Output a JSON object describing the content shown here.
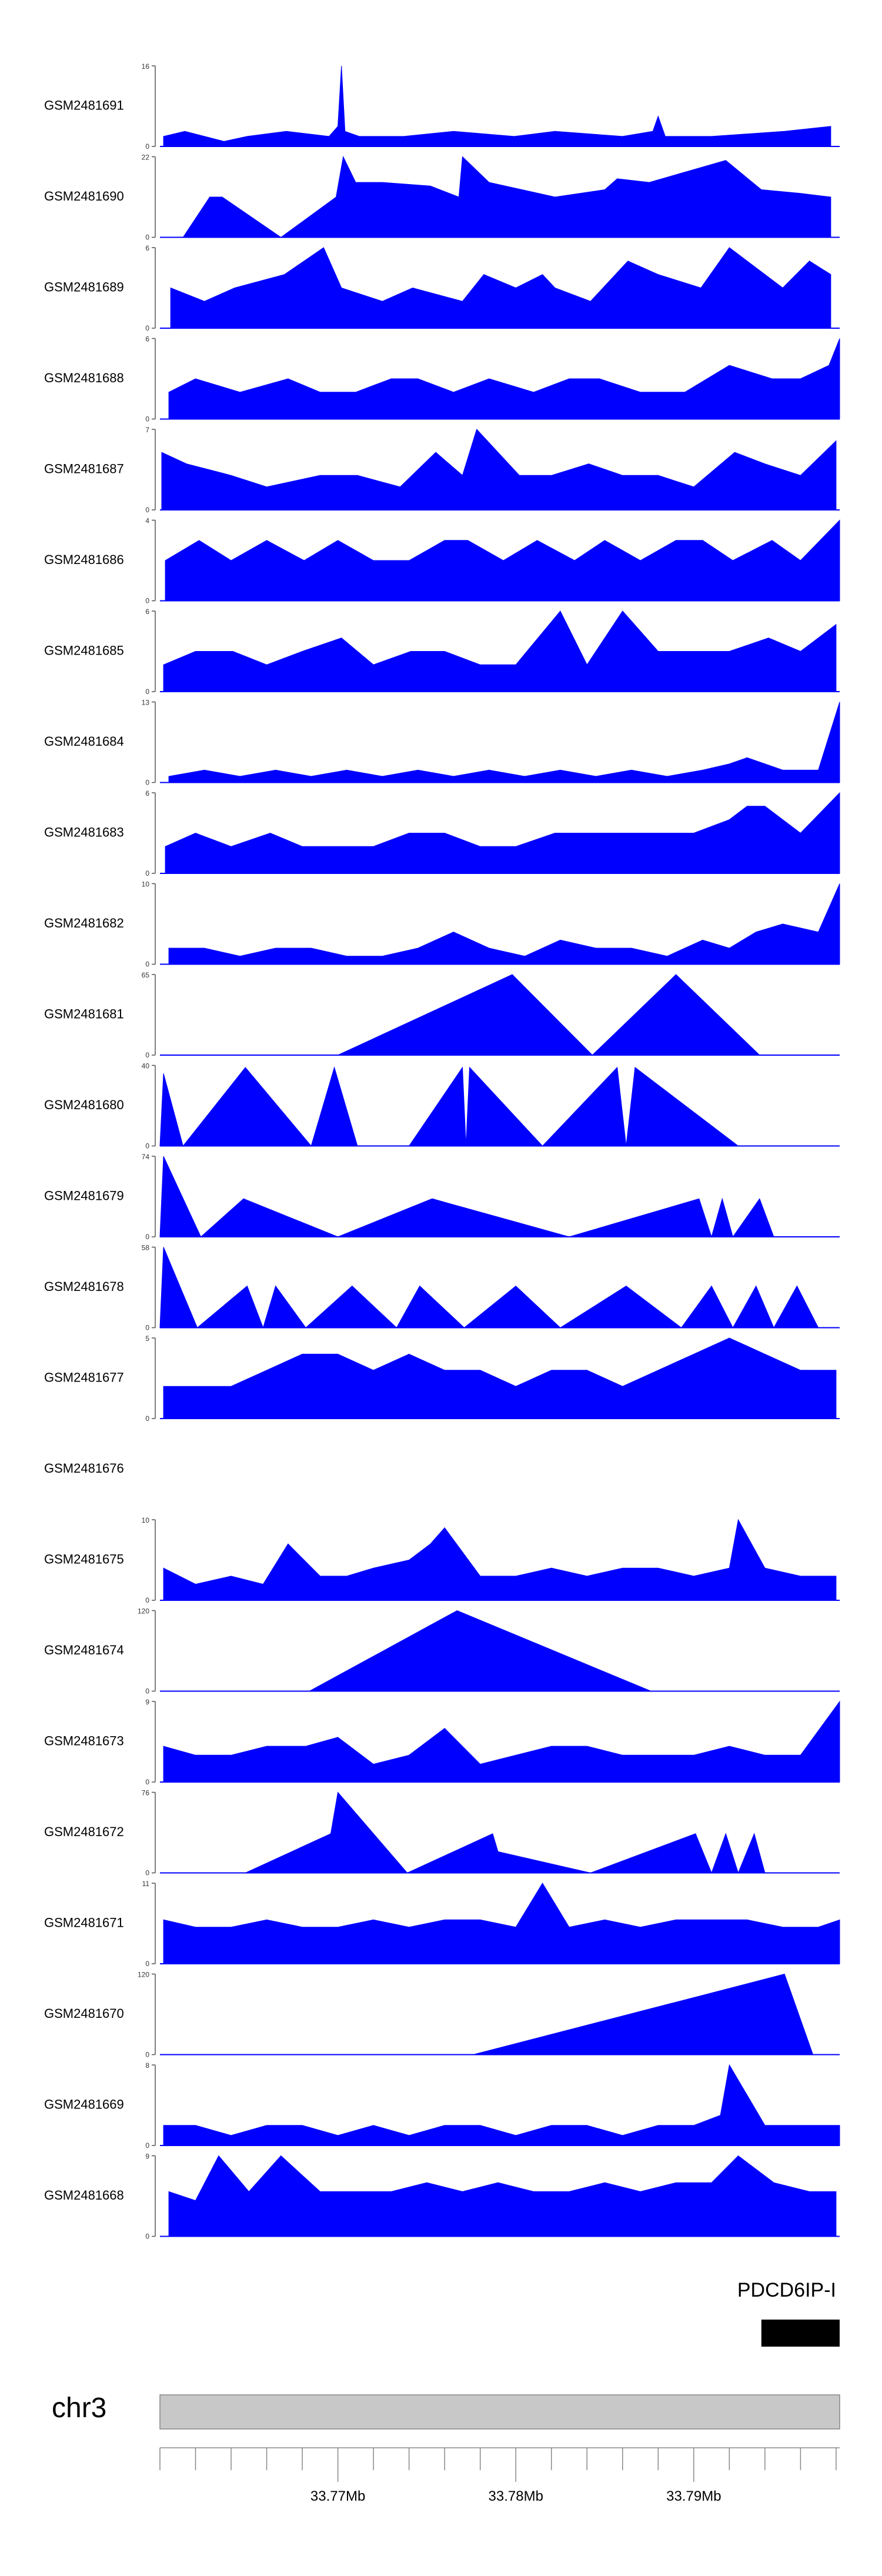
{
  "chart_data": {
    "type": "area",
    "description_title": "",
    "fill_color": "#0000ff",
    "tracks": [
      {
        "sample": "GSM2481691",
        "ymax": 16,
        "ymin": 0,
        "x": [
          33.7602,
          33.7614,
          33.7636,
          33.7649,
          33.7671,
          33.7695,
          33.77,
          33.7702,
          33.7704,
          33.7712,
          33.7737,
          33.7765,
          33.7799,
          33.7822,
          33.786,
          33.7877,
          33.788,
          33.7884,
          33.791,
          33.7951,
          33.7977
        ],
        "y": [
          2,
          3,
          1,
          2,
          3,
          2,
          4,
          16,
          3,
          2,
          2,
          3,
          2,
          3,
          2,
          3,
          6,
          2,
          2,
          3,
          4
        ]
      },
      {
        "sample": "GSM2481690",
        "ymax": 22,
        "ymin": 0,
        "x": [
          33.7613,
          33.7628,
          33.7635,
          33.7668,
          33.7699,
          33.7703,
          33.771,
          33.7725,
          33.7752,
          33.7768,
          33.777,
          33.7785,
          33.7822,
          33.785,
          33.7857,
          33.7875,
          33.7918,
          33.7938,
          33.796,
          33.7977
        ],
        "y": [
          0,
          11,
          11,
          0,
          11,
          22,
          15,
          15,
          14,
          11,
          22,
          15,
          11,
          13,
          16,
          15,
          21,
          13,
          12,
          11
        ]
      },
      {
        "sample": "GSM2481689",
        "ymax": 6,
        "ymin": 0,
        "x": [
          33.7606,
          33.7625,
          33.7642,
          33.767,
          33.7692,
          33.7702,
          33.7725,
          33.7742,
          33.777,
          33.7782,
          33.78,
          33.7815,
          33.7822,
          33.7842,
          33.7863,
          33.788,
          33.7904,
          33.792,
          33.795,
          33.7965,
          33.7977
        ],
        "y": [
          3,
          2,
          3,
          4,
          6,
          3,
          2,
          3,
          2,
          4,
          3,
          4,
          3,
          2,
          5,
          4,
          3,
          6,
          3,
          5,
          4
        ]
      },
      {
        "sample": "GSM2481688",
        "ymax": 6,
        "ymin": 0,
        "x": [
          33.7605,
          33.762,
          33.7645,
          33.7672,
          33.769,
          33.771,
          33.773,
          33.7745,
          33.7765,
          33.7785,
          33.781,
          33.783,
          33.7847,
          33.787,
          33.7895,
          33.792,
          33.7944,
          33.796,
          33.7976,
          33.7982
        ],
        "y": [
          2,
          3,
          2,
          3,
          2,
          2,
          3,
          3,
          2,
          3,
          2,
          3,
          3,
          2,
          2,
          4,
          3,
          3,
          4,
          6
        ]
      },
      {
        "sample": "GSM2481687",
        "ymax": 7,
        "ymin": 0,
        "x": [
          33.7601,
          33.7615,
          33.764,
          33.766,
          33.769,
          33.7711,
          33.7735,
          33.7755,
          33.777,
          33.7778,
          33.7802,
          33.782,
          33.7841,
          33.786,
          33.788,
          33.79,
          33.7923,
          33.794,
          33.796,
          33.798
        ],
        "y": [
          5,
          4,
          3,
          2,
          3,
          3,
          2,
          5,
          3,
          7,
          3,
          3,
          4,
          3,
          3,
          2,
          5,
          4,
          3,
          6
        ]
      },
      {
        "sample": "GSM2481686",
        "ymax": 4,
        "ymin": 0,
        "x": [
          33.7603,
          33.7622,
          33.764,
          33.766,
          33.7681,
          33.77,
          33.772,
          33.774,
          33.776,
          33.7773,
          33.7793,
          33.7812,
          33.7833,
          33.785,
          33.787,
          33.789,
          33.7905,
          33.7922,
          33.7944,
          33.796,
          33.7982
        ],
        "y": [
          2,
          3,
          2,
          3,
          2,
          3,
          2,
          2,
          3,
          3,
          2,
          3,
          2,
          3,
          2,
          3,
          3,
          2,
          3,
          2,
          4
        ]
      },
      {
        "sample": "GSM2481685",
        "ymax": 6,
        "ymin": 0,
        "x": [
          33.7602,
          33.762,
          33.7641,
          33.766,
          33.768,
          33.7702,
          33.772,
          33.7741,
          33.776,
          33.778,
          33.78,
          33.7825,
          33.784,
          33.786,
          33.788,
          33.7903,
          33.792,
          33.7942,
          33.796,
          33.798
        ],
        "y": [
          2,
          3,
          3,
          2,
          3,
          4,
          2,
          3,
          3,
          2,
          2,
          6,
          2,
          6,
          3,
          3,
          3,
          4,
          3,
          5
        ]
      },
      {
        "sample": "GSM2481684",
        "ymax": 13,
        "ymin": 0,
        "x": [
          33.7605,
          33.7625,
          33.7645,
          33.7665,
          33.7685,
          33.7705,
          33.7725,
          33.7745,
          33.7765,
          33.7785,
          33.7805,
          33.7825,
          33.7845,
          33.7865,
          33.7885,
          33.7905,
          33.792,
          33.793,
          33.795,
          33.797,
          33.7982
        ],
        "y": [
          1,
          2,
          1,
          2,
          1,
          2,
          1,
          2,
          1,
          2,
          1,
          2,
          1,
          2,
          1,
          2,
          3,
          4,
          2,
          2,
          13
        ]
      },
      {
        "sample": "GSM2481683",
        "ymax": 6,
        "ymin": 0,
        "x": [
          33.7603,
          33.762,
          33.764,
          33.7662,
          33.768,
          33.77,
          33.772,
          33.774,
          33.776,
          33.778,
          33.78,
          33.7822,
          33.784,
          33.786,
          33.788,
          33.79,
          33.792,
          33.793,
          33.794,
          33.796,
          33.7982
        ],
        "y": [
          2,
          3,
          2,
          3,
          2,
          2,
          2,
          3,
          3,
          2,
          2,
          3,
          3,
          3,
          3,
          3,
          4,
          5,
          5,
          3,
          6
        ]
      },
      {
        "sample": "GSM2481682",
        "ymax": 10,
        "ymin": 0,
        "x": [
          33.7605,
          33.7625,
          33.7645,
          33.7665,
          33.7685,
          33.7705,
          33.7725,
          33.7745,
          33.7765,
          33.7785,
          33.7805,
          33.7825,
          33.7845,
          33.7865,
          33.7885,
          33.7905,
          33.792,
          33.7935,
          33.795,
          33.797,
          33.7982
        ],
        "y": [
          2,
          2,
          1,
          2,
          2,
          1,
          1,
          2,
          4,
          2,
          1,
          3,
          2,
          2,
          1,
          3,
          2,
          4,
          5,
          4,
          10
        ]
      },
      {
        "sample": "GSM2481681",
        "ymax": 65,
        "ymin": 0,
        "x": [
          33.77,
          33.7798,
          33.7843,
          33.789,
          33.7937
        ],
        "y": [
          0,
          65,
          0,
          65,
          0
        ]
      },
      {
        "sample": "GSM2481680",
        "ymax": 40,
        "ymin": 0,
        "x": [
          33.76,
          33.7602,
          33.7613,
          33.7648,
          33.7685,
          33.7698,
          33.7711,
          33.774,
          33.777,
          33.7772,
          33.7774,
          33.7815,
          33.7857,
          33.7862,
          33.7867,
          33.7925
        ],
        "y": [
          0,
          36,
          0,
          39,
          0,
          39,
          0,
          0,
          39,
          0,
          39,
          0,
          39,
          0,
          39,
          0
        ]
      },
      {
        "sample": "GSM2481679",
        "ymax": 74,
        "ymin": 0,
        "x": [
          33.76,
          33.7602,
          33.7623,
          33.7647,
          33.77,
          33.7753,
          33.783,
          33.7903,
          33.791,
          33.7916,
          33.7922,
          33.7937,
          33.7945,
          33.795
        ],
        "y": [
          0,
          74,
          0,
          35,
          0,
          35,
          0,
          35,
          0,
          35,
          0,
          35,
          0,
          0
        ]
      },
      {
        "sample": "GSM2481678",
        "ymax": 58,
        "ymin": 0,
        "x": [
          33.76,
          33.7602,
          33.7621,
          33.7649,
          33.7658,
          33.7665,
          33.7682,
          33.7708,
          33.7733,
          33.7746,
          33.7771,
          33.78,
          33.7825,
          33.7862,
          33.7893,
          33.791,
          33.7922,
          33.7935,
          33.7945,
          33.7958,
          33.797
        ],
        "y": [
          0,
          58,
          0,
          30,
          0,
          30,
          0,
          30,
          0,
          30,
          0,
          30,
          0,
          30,
          0,
          30,
          0,
          30,
          0,
          30,
          0
        ]
      },
      {
        "sample": "GSM2481677",
        "ymax": 5,
        "ymin": 0,
        "x": [
          33.7602,
          33.762,
          33.764,
          33.766,
          33.768,
          33.77,
          33.772,
          33.774,
          33.776,
          33.778,
          33.78,
          33.782,
          33.784,
          33.786,
          33.788,
          33.79,
          33.792,
          33.794,
          33.796,
          33.798
        ],
        "y": [
          2,
          2,
          2,
          3,
          4,
          4,
          3,
          4,
          3,
          3,
          2,
          3,
          3,
          2,
          3,
          4,
          5,
          4,
          3,
          3
        ]
      },
      {
        "sample": "GSM2481676",
        "ymax": null,
        "ymin": null,
        "x": [],
        "y": []
      },
      {
        "sample": "GSM2481675",
        "ymax": 10,
        "ymin": 0,
        "x": [
          33.7602,
          33.762,
          33.764,
          33.7658,
          33.7672,
          33.769,
          33.7705,
          33.772,
          33.774,
          33.7752,
          33.776,
          33.778,
          33.78,
          33.782,
          33.784,
          33.786,
          33.788,
          33.79,
          33.792,
          33.7925,
          33.794,
          33.796,
          33.798
        ],
        "y": [
          4,
          2,
          3,
          2,
          7,
          3,
          3,
          4,
          5,
          7,
          9,
          3,
          3,
          4,
          3,
          4,
          4,
          3,
          4,
          10,
          4,
          3,
          3
        ]
      },
      {
        "sample": "GSM2481674",
        "ymax": 120,
        "ymin": 0,
        "x": [
          33.7684,
          33.7767,
          33.7876
        ],
        "y": [
          0,
          120,
          0
        ]
      },
      {
        "sample": "GSM2481673",
        "ymax": 9,
        "ymin": 0,
        "x": [
          33.7602,
          33.762,
          33.764,
          33.766,
          33.7682,
          33.77,
          33.772,
          33.774,
          33.776,
          33.778,
          33.78,
          33.782,
          33.784,
          33.786,
          33.788,
          33.79,
          33.792,
          33.794,
          33.796,
          33.7982
        ],
        "y": [
          4,
          3,
          3,
          4,
          4,
          5,
          2,
          3,
          6,
          2,
          3,
          4,
          4,
          3,
          3,
          3,
          4,
          3,
          3,
          9
        ]
      },
      {
        "sample": "GSM2481672",
        "ymax": 76,
        "ymin": 0,
        "x": [
          33.7648,
          33.7696,
          33.77,
          33.7739,
          33.7787,
          33.779,
          33.7842,
          33.7901,
          33.791,
          33.7918,
          33.7925,
          33.7934,
          33.794,
          33.795
        ],
        "y": [
          0,
          37,
          76,
          0,
          37,
          20,
          0,
          37,
          0,
          37,
          0,
          37,
          0,
          0
        ]
      },
      {
        "sample": "GSM2481671",
        "ymax": 11,
        "ymin": 0,
        "x": [
          33.7602,
          33.762,
          33.764,
          33.766,
          33.768,
          33.77,
          33.772,
          33.774,
          33.776,
          33.778,
          33.78,
          33.7815,
          33.783,
          33.785,
          33.787,
          33.789,
          33.791,
          33.793,
          33.795,
          33.797,
          33.7982
        ],
        "y": [
          6,
          5,
          5,
          6,
          5,
          5,
          6,
          5,
          6,
          6,
          5,
          11,
          5,
          6,
          5,
          6,
          6,
          6,
          5,
          5,
          6
        ]
      },
      {
        "sample": "GSM2481670",
        "ymax": 120,
        "ymin": 0,
        "x": [
          33.7776,
          33.7951,
          33.7967
        ],
        "y": [
          0,
          120,
          0
        ]
      },
      {
        "sample": "GSM2481669",
        "ymax": 8,
        "ymin": 0,
        "x": [
          33.7602,
          33.762,
          33.764,
          33.766,
          33.768,
          33.77,
          33.772,
          33.774,
          33.776,
          33.778,
          33.78,
          33.782,
          33.784,
          33.786,
          33.788,
          33.79,
          33.7915,
          33.792,
          33.794,
          33.796,
          33.7982
        ],
        "y": [
          2,
          2,
          1,
          2,
          2,
          1,
          2,
          1,
          2,
          2,
          1,
          2,
          2,
          1,
          2,
          2,
          3,
          8,
          2,
          2,
          2
        ]
      },
      {
        "sample": "GSM2481668",
        "ymax": 9,
        "ymin": 0,
        "x": [
          33.7605,
          33.762,
          33.7633,
          33.765,
          33.7668,
          33.769,
          33.771,
          33.773,
          33.775,
          33.777,
          33.779,
          33.781,
          33.783,
          33.785,
          33.787,
          33.789,
          33.791,
          33.7925,
          33.7945,
          33.7965,
          33.798
        ],
        "y": [
          5,
          4,
          9,
          5,
          9,
          5,
          5,
          5,
          6,
          5,
          6,
          5,
          5,
          6,
          5,
          6,
          6,
          9,
          6,
          5,
          5
        ]
      }
    ],
    "gene_label": "PDCD6IP-I",
    "gene_start": 33.7938,
    "gene_end": 33.7982,
    "chromosome": "chr3",
    "x_range": [
      33.76,
      33.7982
    ],
    "x_tick_labels": [
      {
        "value": 33.77,
        "label": "33.77Mb"
      },
      {
        "value": 33.78,
        "label": "33.78Mb"
      },
      {
        "value": 33.79,
        "label": "33.79Mb"
      }
    ],
    "minor_tick_step": 0.002
  }
}
